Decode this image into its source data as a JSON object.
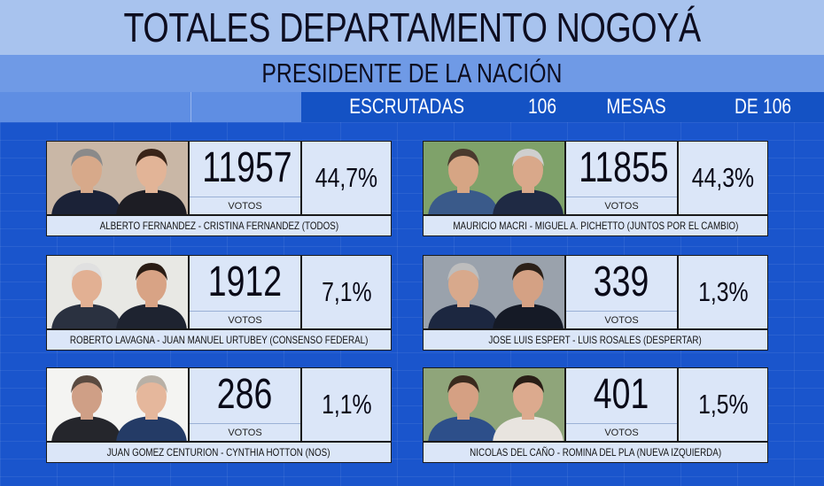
{
  "header": {
    "title": "TOTALES DEPARTAMENTO NOGOYÁ",
    "subtitle": "PRESIDENTE DE LA NACIÓN"
  },
  "scrutiny": {
    "label": "ESCRUTADAS",
    "scrutinized": "106",
    "mesas_label": "MESAS",
    "total": "DE 106"
  },
  "votes_label": "VOTOS",
  "candidates": [
    {
      "names": "ALBERTO FERNANDEZ - CRISTINA FERNANDEZ (TODOS)",
      "votes": "11957",
      "percent": "44,7%",
      "photo_icon": "candidate-photo"
    },
    {
      "names": "MAURICIO MACRI - MIGUEL A. PICHETTO (JUNTOS POR EL CAMBIO)",
      "votes": "11855",
      "percent": "44,3%",
      "photo_icon": "candidate-photo"
    },
    {
      "names": "ROBERTO LAVAGNA - JUAN MANUEL URTUBEY (CONSENSO FEDERAL)",
      "votes": "1912",
      "percent": "7,1%",
      "photo_icon": "candidate-photo"
    },
    {
      "names": "JOSE LUIS ESPERT - LUIS ROSALES (DESPERTAR)",
      "votes": "339",
      "percent": "1,3%",
      "photo_icon": "candidate-photo"
    },
    {
      "names": "JUAN GOMEZ CENTURION - CYNTHIA HOTTON (NOS)",
      "votes": "286",
      "percent": "1,1%",
      "photo_icon": "candidate-photo"
    },
    {
      "names": "NICOLAS DEL CAÑO - ROMINA DEL PLA (NUEVA IZQUIERDA)",
      "votes": "401",
      "percent": "1,5%",
      "photo_icon": "candidate-photo"
    }
  ],
  "colors": {
    "background": "#1a55cc",
    "title_bar": "#a8c3ee",
    "subtitle_bar": "#6f9ae6",
    "box": "#dbe6f8"
  }
}
